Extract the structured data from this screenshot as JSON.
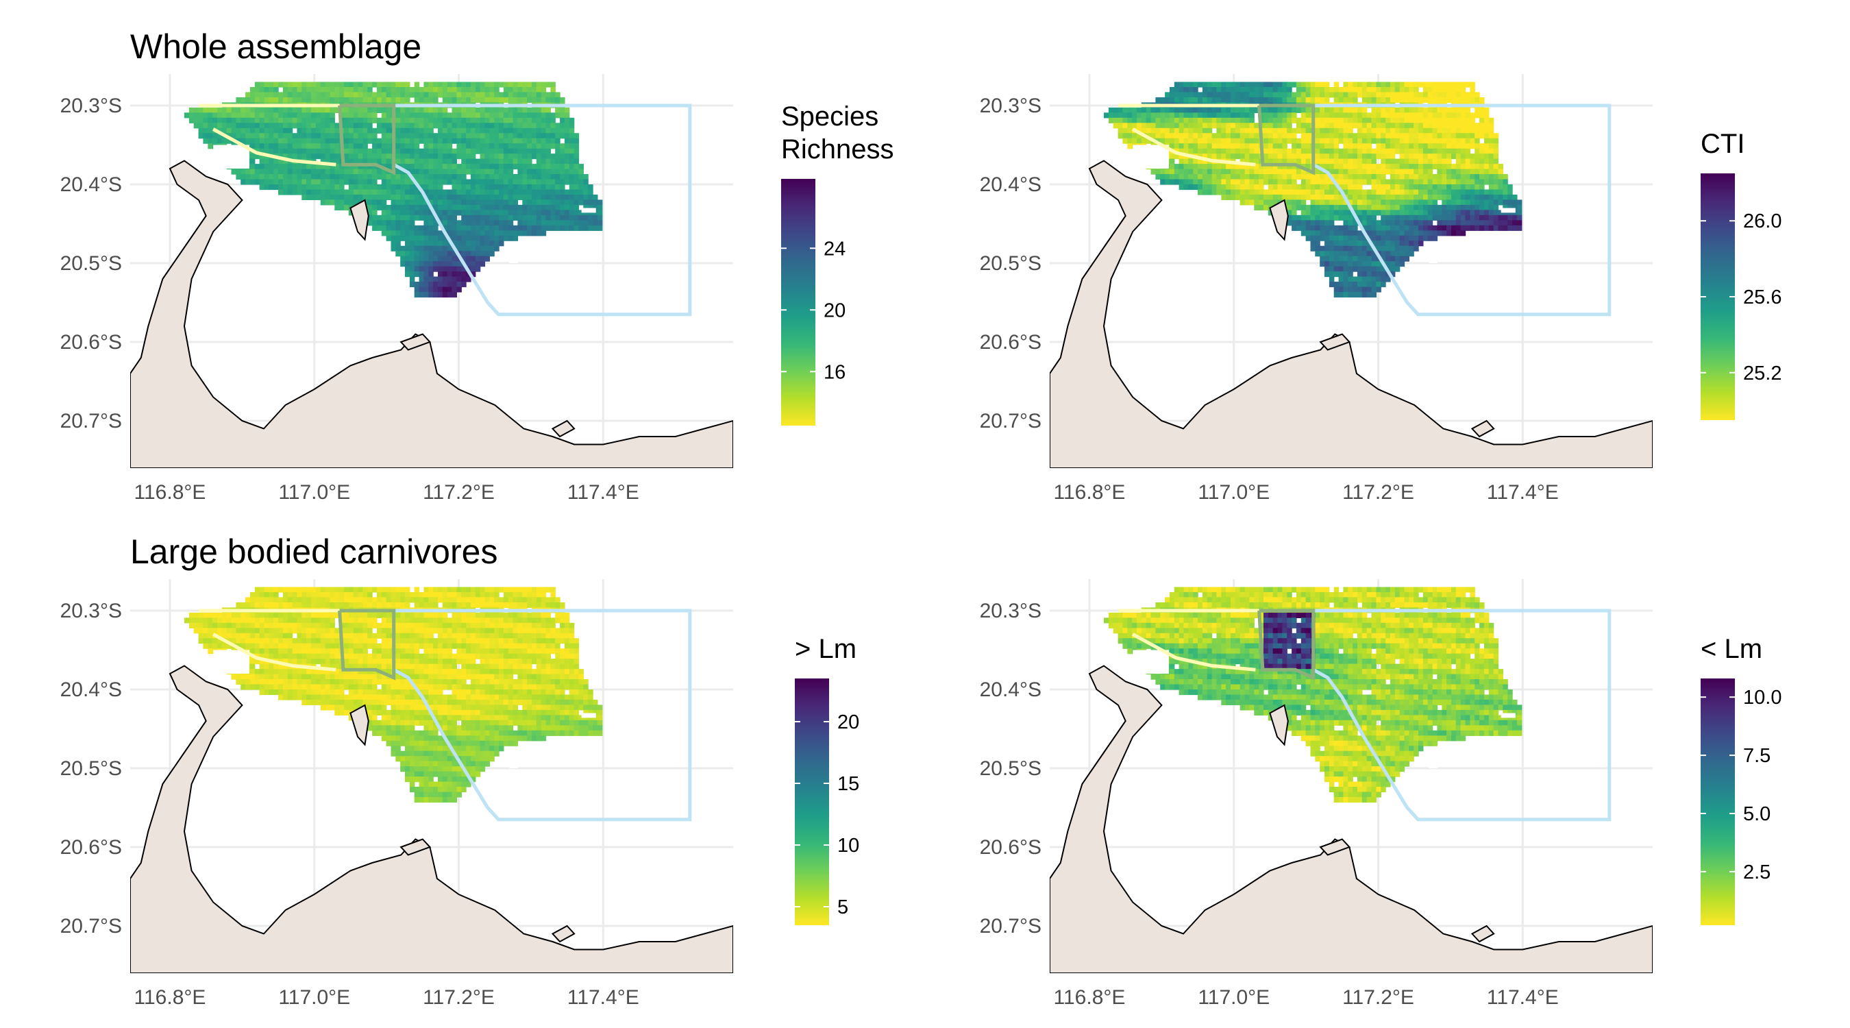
{
  "figure": {
    "panels": [
      {
        "title": "Whole assemblage",
        "legend": {
          "title_lines": [
            "Species",
            "Richness"
          ],
          "ticks": [
            "24",
            "20",
            "16"
          ],
          "tick_values": [
            24,
            20,
            16
          ],
          "range": [
            12.5,
            28.5
          ]
        },
        "pattern": "richness"
      },
      {
        "title": "",
        "legend": {
          "title_lines": [
            "CTI"
          ],
          "ticks": [
            "26.0",
            "25.6",
            "25.2"
          ],
          "tick_values": [
            26.0,
            25.6,
            25.2
          ],
          "range": [
            24.95,
            26.25
          ]
        },
        "pattern": "cti"
      },
      {
        "title": "Large bodied carnivores",
        "legend": {
          "title_lines": [
            "> Lm"
          ],
          "ticks": [
            "20",
            "15",
            "10",
            "5"
          ],
          "tick_values": [
            20,
            15,
            10,
            5
          ],
          "range": [
            3.5,
            23.5
          ]
        },
        "pattern": "large"
      },
      {
        "title": "",
        "legend": {
          "title_lines": [
            "< Lm"
          ],
          "ticks": [
            "10.0",
            "7.5",
            "5.0",
            "2.5"
          ],
          "tick_values": [
            10.0,
            7.5,
            5.0,
            2.5
          ],
          "range": [
            0.2,
            10.8
          ]
        },
        "pattern": "small"
      }
    ],
    "x_ticks": [
      "116.8°E",
      "117.0°E",
      "117.2°E",
      "117.4°E"
    ],
    "x_tick_values": [
      116.8,
      117.0,
      117.2,
      117.4
    ],
    "y_ticks": [
      "20.3°S",
      "20.4°S",
      "20.5°S",
      "20.6°S",
      "20.7°S"
    ],
    "y_tick_values": [
      -20.3,
      -20.4,
      -20.5,
      -20.6,
      -20.7
    ],
    "lon_range": [
      116.745,
      117.58
    ],
    "lat_range": [
      -20.76,
      -20.26
    ],
    "colors": {
      "land": "#ede3dd",
      "coastline": "#000000",
      "grid": "#ebebeb",
      "zone_light_blue": "#bde3f4",
      "zone_yellow": "#fffbb5",
      "sanctuary_box": "#8db07a",
      "viridis": [
        "#fde725",
        "#b5de2b",
        "#6ece58",
        "#35b779",
        "#1f9e89",
        "#26828e",
        "#31688e",
        "#3e4989",
        "#482878",
        "#440154"
      ]
    }
  }
}
